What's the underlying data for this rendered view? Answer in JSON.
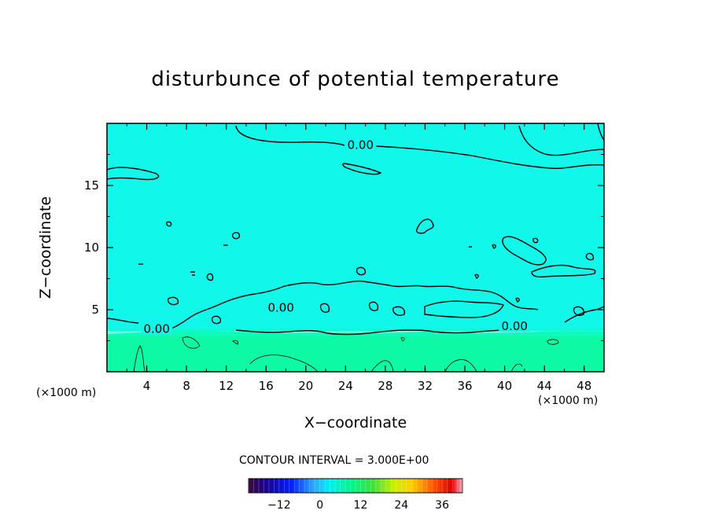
{
  "chart_data": {
    "type": "heatmap",
    "title": "disturbunce of potential temperature",
    "xlabel": "X−coordinate",
    "ylabel": "Z−coordinate",
    "x_unit_left": "(×1000 m)",
    "x_unit_right": "(×1000 m)",
    "xlim": [
      0,
      50
    ],
    "ylim": [
      0,
      20
    ],
    "x_ticks": [
      "4",
      "8",
      "12",
      "16",
      "20",
      "24",
      "28",
      "32",
      "36",
      "40",
      "44",
      "48"
    ],
    "y_ticks": [
      "5",
      "10",
      "15"
    ],
    "contour_interval_label": "CONTOUR INTERVAL = 3.000E+00",
    "contour_labels": [
      {
        "text": "0.00",
        "x": 25.5,
        "y": 18.2
      },
      {
        "text": "0.00",
        "x": 5.0,
        "y": 3.4
      },
      {
        "text": "0.00",
        "x": 17.5,
        "y": 5.1
      },
      {
        "text": "0.00",
        "x": 41.0,
        "y": 3.6
      }
    ],
    "field_regions": [
      {
        "z_range": [
          3.0,
          20.0
        ],
        "value_approx": 0,
        "color": "#11f7ea"
      },
      {
        "z_range": [
          0.0,
          3.0
        ],
        "value_approx": 3,
        "color": "#0ef9a6"
      }
    ],
    "colorbar": {
      "range": [
        -21,
        42
      ],
      "tick_labels": [
        "−12",
        "0",
        "12",
        "24",
        "36"
      ],
      "tick_values": [
        -12,
        0,
        12,
        24,
        36
      ]
    }
  },
  "colors": {
    "upper_field": "#11f7ea",
    "lower_field": "#0ef9a6",
    "contour": "#000000"
  }
}
